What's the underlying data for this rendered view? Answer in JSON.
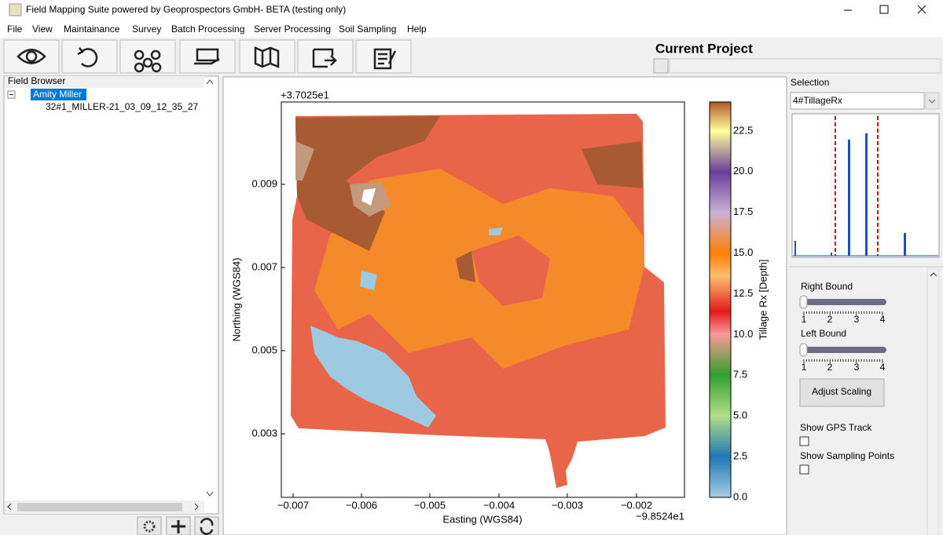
{
  "window": {
    "title": "Field Mapping Suite powered by Geoprospectors GmbH- BETA (testing only)"
  },
  "menu": [
    "File",
    "View",
    "Maintainance",
    "Survey",
    "Batch Processing",
    "Server Processing",
    "Soil Sampling",
    "Help"
  ],
  "project": {
    "label": "Current Project"
  },
  "field_browser": {
    "title": "Field Browser",
    "client": "Amity Miller",
    "field": "32#1_MILLER-21_03_09_12_35_27"
  },
  "plot": {
    "offset_y": "+3.7025e1",
    "offset_x": "−9.8524e1",
    "xlabel": "Easting (WGS84)",
    "ylabel": "Northing (WGS84)",
    "xticks": [
      "−0.007",
      "−0.006",
      "−0.005",
      "−0.004",
      "−0.003",
      "−0.002"
    ],
    "yticks": [
      "0.009",
      "0.007",
      "0.005",
      "0.003"
    ],
    "colorbar": {
      "label": "Tillage Rx [Depth]",
      "ticks": [
        "0.0",
        "2.5",
        "5.0",
        "7.5",
        "10.0",
        "12.5",
        "15.0",
        "17.5",
        "20.0",
        "22.5"
      ]
    }
  },
  "selection": {
    "title": "Selection",
    "value": "4#TillageRx"
  },
  "controls": {
    "right_bound": "Right Bound",
    "left_bound": "Left Bound",
    "scale": [
      "1",
      "2",
      "3",
      "4"
    ],
    "adjust": "Adjust Scaling",
    "gps": "Show GPS Track",
    "sampling": "Show Sampling Points"
  }
}
